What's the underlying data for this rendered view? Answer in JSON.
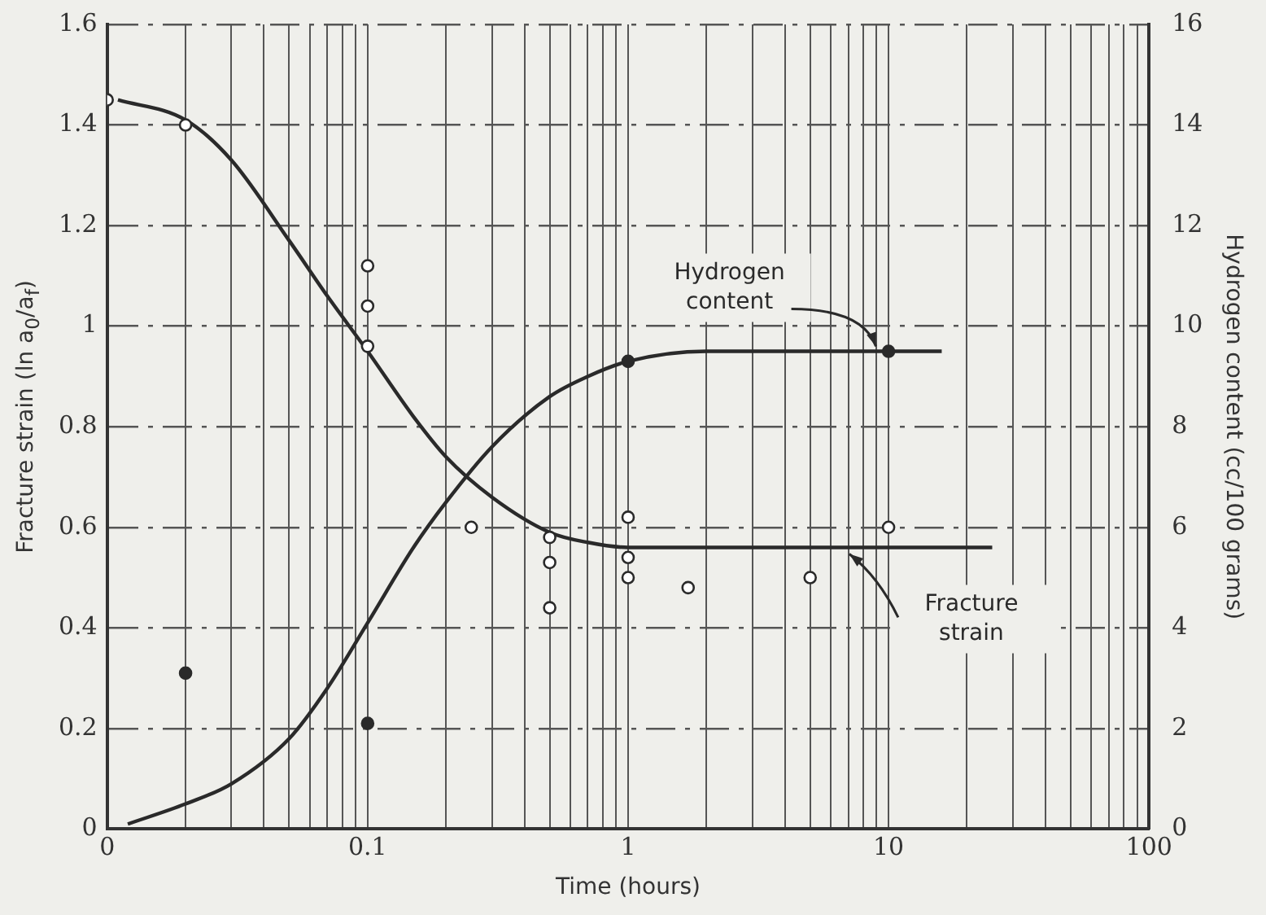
{
  "chart_data": {
    "type": "line",
    "xlabel": "Time (hours)",
    "ylabel": "Fracture strain (ln a$_{0}$/a$_{f}$)",
    "y2label": "Hydrogen content (cc/100 grams)",
    "log": "x",
    "grid": true,
    "line_style": "solid",
    "xlim": [
      0.01,
      100
    ],
    "xticks": [
      {
        "value": 0.01,
        "label": "0"
      },
      {
        "value": 0.02,
        "label": null
      },
      {
        "value": 0.03,
        "label": null
      },
      {
        "value": 0.04,
        "label": null
      },
      {
        "value": 0.05,
        "label": null
      },
      {
        "value": 0.06,
        "label": null
      },
      {
        "value": 0.07,
        "label": null
      },
      {
        "value": 0.08,
        "label": null
      },
      {
        "value": 0.09,
        "label": null
      },
      0.1,
      {
        "value": 0.2,
        "label": null
      },
      {
        "value": 0.3,
        "label": null
      },
      {
        "value": 0.4,
        "label": null
      },
      {
        "value": 0.5,
        "label": null
      },
      {
        "value": 0.6,
        "label": null
      },
      {
        "value": 0.7,
        "label": null
      },
      {
        "value": 0.8,
        "label": null
      },
      {
        "value": 0.9,
        "label": null
      },
      1,
      {
        "value": 2,
        "label": null
      },
      {
        "value": 3,
        "label": null
      },
      {
        "value": 4,
        "label": null
      },
      {
        "value": 5,
        "label": null
      },
      {
        "value": 6,
        "label": null
      },
      {
        "value": 7,
        "label": null
      },
      {
        "value": 8,
        "label": null
      },
      {
        "value": 9,
        "label": null
      },
      10,
      {
        "value": 20,
        "label": null
      },
      {
        "value": 30,
        "label": null
      },
      {
        "value": 40,
        "label": null
      },
      {
        "value": 50,
        "label": null
      },
      {
        "value": 60,
        "label": null
      },
      {
        "value": 70,
        "label": null
      },
      {
        "value": 80,
        "label": null
      },
      {
        "value": 90,
        "label": null
      },
      100
    ],
    "ylim": [
      0,
      1.6
    ],
    "yticks": [
      0,
      0.2,
      0.4,
      0.6,
      0.8,
      1.0,
      1.2,
      1.4,
      1.6
    ],
    "y2lim": [
      0,
      16
    ],
    "y2ticks": [
      0,
      2,
      4,
      6,
      8,
      10,
      12,
      14,
      16
    ],
    "series": [
      {
        "name": "Fracture strain",
        "marker": "none",
        "color": "#2a2a2a",
        "x": [
          0.011,
          0.02,
          0.03,
          0.05,
          0.07,
          0.1,
          0.15,
          0.2,
          0.3,
          0.5,
          0.7,
          1,
          2,
          25
        ],
        "values": [
          1.45,
          1.41,
          1.33,
          1.17,
          1.06,
          0.95,
          0.82,
          0.74,
          0.66,
          0.59,
          0.57,
          0.56,
          0.56,
          0.56
        ]
      },
      {
        "type": "scatter",
        "marker": "circle",
        "color": "#2a2a2a",
        "x": [
          0.01,
          0.02,
          0.1,
          0.1,
          0.1,
          0.25,
          0.5,
          0.5,
          0.5,
          1,
          1,
          1,
          1.7,
          5,
          10
        ],
        "values": [
          1.45,
          1.4,
          1.12,
          1.04,
          0.96,
          0.6,
          0.58,
          0.53,
          0.44,
          0.62,
          0.54,
          0.5,
          0.48,
          0.5,
          0.6
        ]
      },
      {
        "name": "Hydrogen content",
        "marker": "none",
        "axis": "y2",
        "color": "#2a2a2a",
        "x": [
          0.012,
          0.02,
          0.03,
          0.05,
          0.07,
          0.1,
          0.15,
          0.2,
          0.3,
          0.5,
          0.7,
          1,
          2,
          5,
          16
        ],
        "values": [
          0.1,
          0.5,
          0.9,
          1.8,
          2.8,
          4.1,
          5.6,
          6.5,
          7.6,
          8.6,
          9.0,
          9.3,
          9.5,
          9.5,
          9.5
        ]
      },
      {
        "type": "scatter",
        "marker": "circle",
        "axis": "y2",
        "color": "#2a2a2a",
        "x": [
          0.02,
          0.1,
          1,
          10
        ],
        "values": [
          3.1,
          2.1,
          9.3,
          9.5
        ]
      }
    ]
  }
}
